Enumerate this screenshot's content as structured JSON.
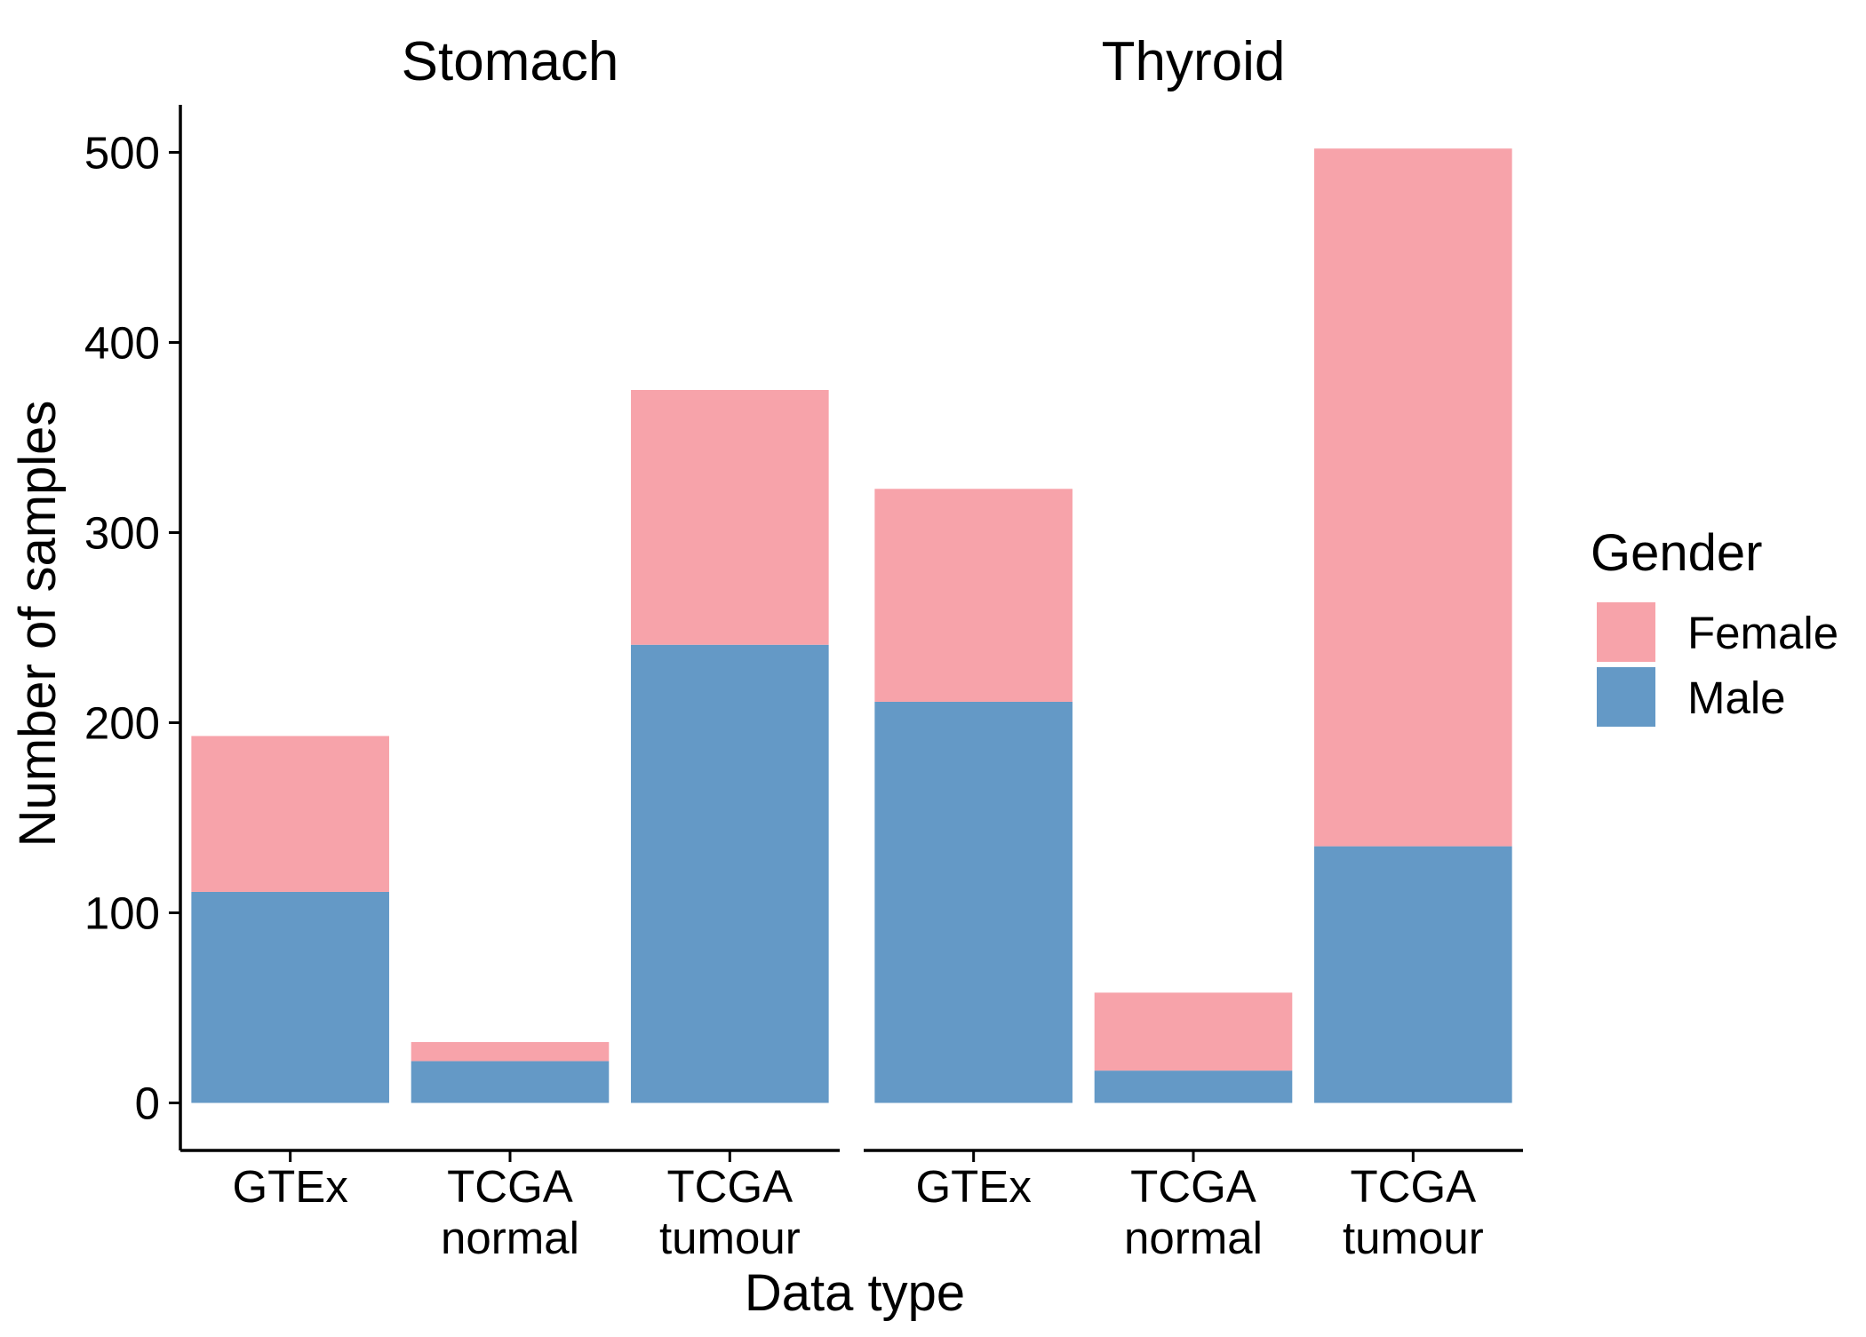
{
  "chart_data": {
    "type": "bar",
    "stacked": true,
    "facets": [
      "Stomach",
      "Thyroid"
    ],
    "categories": [
      "GTEx",
      "TCGA\nnormal",
      "TCGA\ntumour"
    ],
    "series": [
      {
        "name": "Male",
        "color": "#6499C6",
        "values": {
          "Stomach": [
            111,
            22,
            241
          ],
          "Thyroid": [
            211,
            17,
            135
          ]
        }
      },
      {
        "name": "Female",
        "color": "#F7A3AA",
        "values": {
          "Stomach": [
            82,
            10,
            134
          ],
          "Thyroid": [
            112,
            41,
            367
          ]
        }
      }
    ],
    "xlabel": "Data type",
    "ylabel": "Number of samples",
    "ylim": [
      -25,
      525
    ],
    "yticks": [
      0,
      100,
      200,
      300,
      400,
      500
    ],
    "legend": {
      "title": "Gender",
      "entries": [
        "Female",
        "Male"
      ],
      "position": "right"
    },
    "grid": false
  }
}
